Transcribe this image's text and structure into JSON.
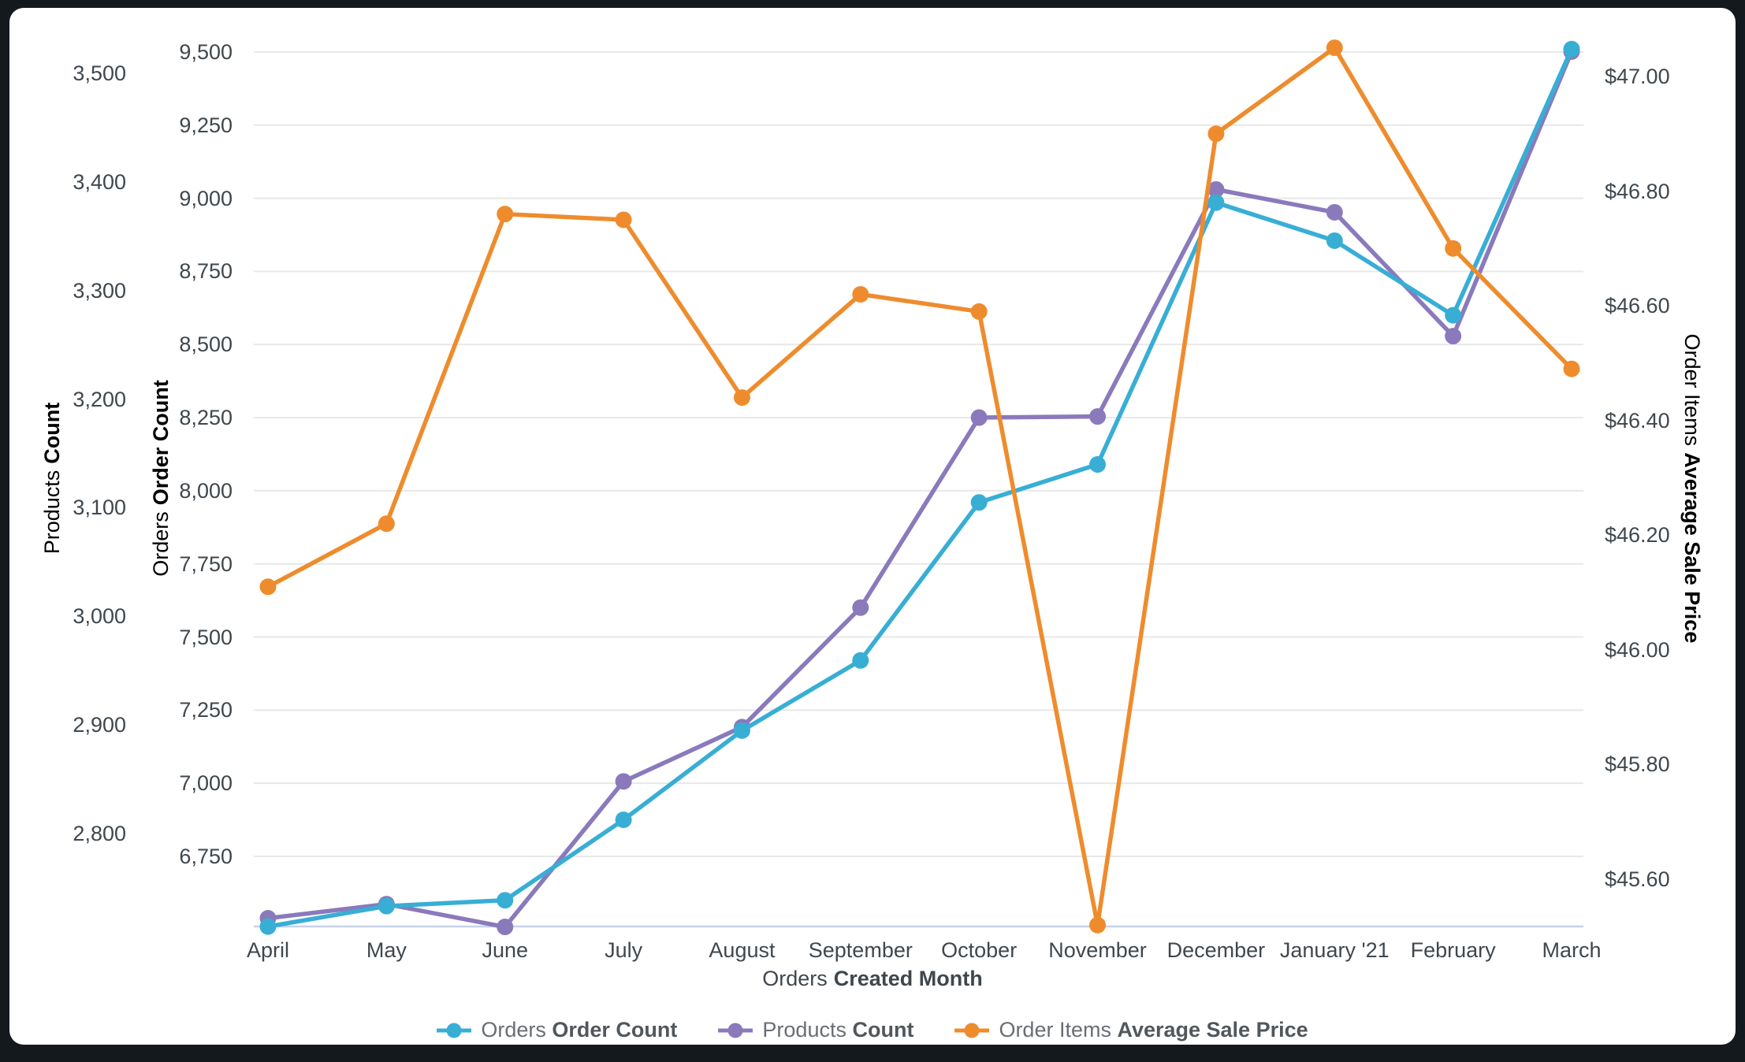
{
  "frame": {
    "background": "#14191e",
    "card_background": "#ffffff"
  },
  "axes": {
    "products": {
      "label_prefix": "Products",
      "label_bold": "Count",
      "color": "#7d6bb2",
      "tick_labels": [
        "3,500",
        "3,400",
        "3,300",
        "3,200",
        "3,100",
        "3,000",
        "2,900",
        "2,800"
      ]
    },
    "orders": {
      "label_prefix": "Orders",
      "label_bold": "Order Count",
      "color": "#33a8d0",
      "tick_labels": [
        "9,500",
        "9,250",
        "9,000",
        "8,750",
        "8,500",
        "8,250",
        "8,000",
        "7,750",
        "7,500",
        "7,250",
        "7,000",
        "6,750"
      ]
    },
    "price": {
      "label_prefix": "Order Items",
      "label_bold": "Average Sale Price",
      "color": "#e8872b",
      "tick_labels": [
        "$47.00",
        "$46.80",
        "$46.60",
        "$46.40",
        "$46.20",
        "$46.00",
        "$45.80",
        "$45.60"
      ]
    },
    "x": {
      "label_prefix": "Orders",
      "label_bold": "Created Month",
      "categories": [
        "April",
        "May",
        "June",
        "July",
        "August",
        "September",
        "October",
        "November",
        "December",
        "January '21",
        "February",
        "March"
      ]
    }
  },
  "legend": {
    "items": [
      {
        "prefix": "Orders",
        "bold": "Order Count",
        "color": "#38aed5"
      },
      {
        "prefix": "Products",
        "bold": "Count",
        "color": "#8a7abc"
      },
      {
        "prefix": "Order Items",
        "bold": "Average Sale Price",
        "color": "#ee8c2d"
      }
    ]
  },
  "chart_data": {
    "type": "line",
    "x_label": "Orders Created Month",
    "categories": [
      "April",
      "May",
      "June",
      "July",
      "August",
      "September",
      "October",
      "November",
      "December",
      "January '21",
      "February",
      "March"
    ],
    "series": [
      {
        "name": "Products Count",
        "axis": "products",
        "color": "#8a7abc",
        "values": [
          2722,
          2735,
          2714,
          2848,
          2898,
          3008,
          3183,
          3184,
          3393,
          3372,
          3258,
          3520
        ]
      },
      {
        "name": "Orders Order Count",
        "axis": "orders",
        "color": "#38aed5",
        "values": [
          6510,
          6580,
          6600,
          6875,
          7180,
          7420,
          7960,
          8090,
          8985,
          8855,
          8600,
          9510
        ]
      },
      {
        "name": "Order Items Average Sale Price",
        "axis": "price",
        "color": "#ee8c2d",
        "values": [
          46.11,
          46.22,
          46.76,
          46.75,
          46.44,
          46.62,
          46.59,
          45.52,
          46.9,
          47.05,
          46.7,
          46.49
        ]
      }
    ],
    "axis_ranges": {
      "products": {
        "ticks": [
          3500,
          3400,
          3300,
          3200,
          3100,
          3000,
          2900,
          2800
        ],
        "min": 2714,
        "max": 3525
      },
      "orders": {
        "ticks": [
          9500,
          9250,
          9000,
          8750,
          8500,
          8250,
          8000,
          7750,
          7500,
          7250,
          7000,
          6750
        ],
        "min": 6505,
        "max": 9520
      },
      "price": {
        "ticks": [
          47.0,
          46.8,
          46.6,
          46.4,
          46.2,
          46.0,
          45.8,
          45.6
        ],
        "min": 45.52,
        "max": 47.06
      }
    },
    "grid": "horizontal",
    "legend_position": "bottom"
  }
}
